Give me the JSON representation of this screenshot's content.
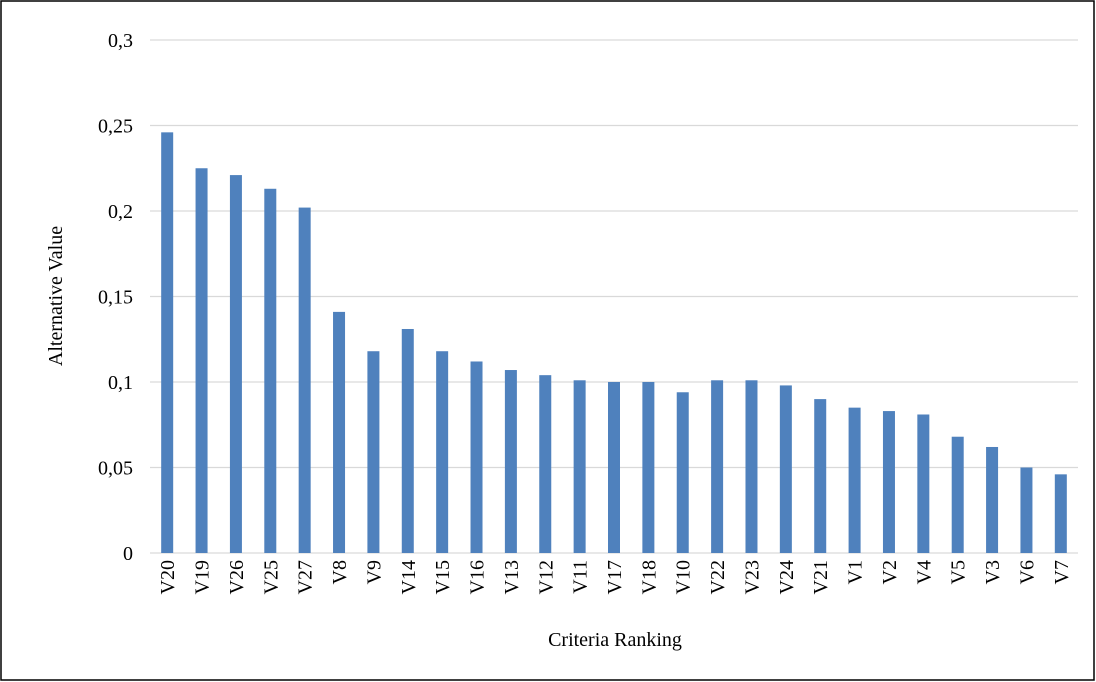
{
  "chart_data": {
    "type": "bar",
    "x_label": "Criteria Ranking",
    "y_label": "Alternative Value",
    "categories": [
      "V20",
      "V19",
      "V26",
      "V25",
      "V27",
      "V8",
      "V9",
      "V14",
      "V15",
      "V16",
      "V13",
      "V12",
      "V11",
      "V17",
      "V18",
      "V10",
      "V22",
      "V23",
      "V24",
      "V21",
      "V1",
      "V2",
      "V4",
      "V5",
      "V3",
      "V6",
      "V7"
    ],
    "values": [
      0.246,
      0.225,
      0.221,
      0.213,
      0.202,
      0.141,
      0.118,
      0.131,
      0.118,
      0.112,
      0.107,
      0.104,
      0.101,
      0.1,
      0.1,
      0.094,
      0.101,
      0.101,
      0.098,
      0.09,
      0.085,
      0.083,
      0.081,
      0.068,
      0.062,
      0.05,
      0.046
    ],
    "color": "#4f81bd",
    "ylim": [
      0,
      0.3
    ],
    "yticks": [
      0,
      {
        "value": 0.05,
        "label": "0,05"
      },
      {
        "value": 0.1,
        "label": "0,1"
      },
      {
        "value": 0.15,
        "label": "0,15"
      },
      {
        "value": 0.2,
        "label": "0,2"
      },
      {
        "value": 0.25,
        "label": "0,25"
      },
      {
        "value": 0.3,
        "label": "0,3"
      }
    ],
    "grid": true
  }
}
